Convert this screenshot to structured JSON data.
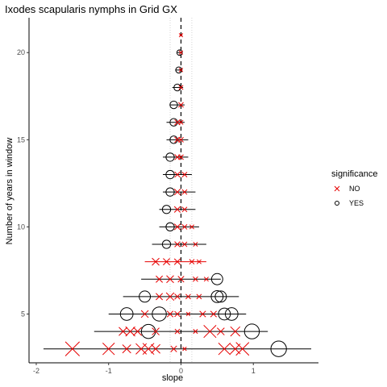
{
  "chart_data": {
    "type": "scatter",
    "title": "Ixodes scapularis nymphs in Grid GX",
    "xlabel": "slope",
    "ylabel": "Number of years in window",
    "xlim": [
      -2.1,
      1.9
    ],
    "ylim": [
      2.2,
      22
    ],
    "x_ticks": [
      -2,
      -1,
      0,
      1
    ],
    "y_ticks": [
      5,
      10,
      15,
      20
    ],
    "reference_line_x": 0,
    "reference_lines_dotted_x": [
      -0.15,
      0.15
    ],
    "grid": false,
    "legend": {
      "title": "significance",
      "position": "right",
      "entries": [
        {
          "label": "NO",
          "marker": "x",
          "color": "#e60000"
        },
        {
          "label": "YES",
          "marker": "circle",
          "color": "#000000"
        }
      ]
    },
    "points": [
      {
        "y": 3,
        "x": -1.5,
        "lo": -1.9,
        "hi": 1.8,
        "sig": "NO",
        "size": 1.0
      },
      {
        "y": 3,
        "x": -1.0,
        "lo": -1.9,
        "hi": 1.8,
        "sig": "NO",
        "size": 0.8
      },
      {
        "y": 3,
        "x": -0.75,
        "lo": -1.9,
        "hi": 1.8,
        "sig": "NO",
        "size": 0.5
      },
      {
        "y": 3,
        "x": -0.55,
        "lo": -1.9,
        "hi": 1.8,
        "sig": "NO",
        "size": 0.7
      },
      {
        "y": 3,
        "x": -0.45,
        "lo": -1.9,
        "hi": 1.8,
        "sig": "NO",
        "size": 0.75
      },
      {
        "y": 3,
        "x": -0.35,
        "lo": -1.9,
        "hi": 1.8,
        "sig": "NO",
        "size": 0.55
      },
      {
        "y": 3,
        "x": -0.1,
        "lo": -1.9,
        "hi": 1.8,
        "sig": "NO",
        "size": 0.3
      },
      {
        "y": 3,
        "x": 0.05,
        "lo": -1.9,
        "hi": 1.8,
        "sig": "NO",
        "size": 0.1
      },
      {
        "y": 3,
        "x": 0.6,
        "lo": -1.9,
        "hi": 1.8,
        "sig": "NO",
        "size": 0.8
      },
      {
        "y": 3,
        "x": 0.75,
        "lo": -1.9,
        "hi": 1.8,
        "sig": "NO",
        "size": 0.65
      },
      {
        "y": 3,
        "x": 0.85,
        "lo": -1.9,
        "hi": 1.8,
        "sig": "NO",
        "size": 0.9
      },
      {
        "y": 3,
        "x": 1.35,
        "lo": -1.9,
        "hi": 1.8,
        "sig": "YES",
        "size": 0.85
      },
      {
        "y": 4,
        "x": -0.8,
        "lo": -1.2,
        "hi": 1.2,
        "sig": "NO",
        "size": 0.5
      },
      {
        "y": 4,
        "x": -0.7,
        "lo": -1.2,
        "hi": 1.2,
        "sig": "NO",
        "size": 0.6
      },
      {
        "y": 4,
        "x": -0.6,
        "lo": -1.2,
        "hi": 1.2,
        "sig": "NO",
        "size": 0.5
      },
      {
        "y": 4,
        "x": -0.45,
        "lo": -1.2,
        "hi": 1.2,
        "sig": "YES",
        "size": 0.75
      },
      {
        "y": 4,
        "x": -0.35,
        "lo": -1.2,
        "hi": 1.2,
        "sig": "NO",
        "size": 0.4
      },
      {
        "y": 4,
        "x": -0.05,
        "lo": -1.2,
        "hi": 1.2,
        "sig": "NO",
        "size": 0.2
      },
      {
        "y": 4,
        "x": 0.2,
        "lo": -1.2,
        "hi": 1.2,
        "sig": "NO",
        "size": 0.15
      },
      {
        "y": 4,
        "x": 0.4,
        "lo": -1.2,
        "hi": 1.2,
        "sig": "NO",
        "size": 0.85
      },
      {
        "y": 4,
        "x": 0.55,
        "lo": -1.2,
        "hi": 1.2,
        "sig": "NO",
        "size": 0.4
      },
      {
        "y": 4,
        "x": 0.75,
        "lo": -1.2,
        "hi": 1.2,
        "sig": "NO",
        "size": 0.6
      },
      {
        "y": 4,
        "x": 0.98,
        "lo": -1.2,
        "hi": 1.2,
        "sig": "YES",
        "size": 0.8
      },
      {
        "y": 5,
        "x": -0.75,
        "lo": -1.0,
        "hi": 0.9,
        "sig": "YES",
        "size": 0.65
      },
      {
        "y": 5,
        "x": -0.5,
        "lo": -1.0,
        "hi": 0.9,
        "sig": "NO",
        "size": 0.4
      },
      {
        "y": 5,
        "x": -0.3,
        "lo": -1.0,
        "hi": 0.9,
        "sig": "YES",
        "size": 0.75
      },
      {
        "y": 5,
        "x": -0.15,
        "lo": -1.0,
        "hi": 0.9,
        "sig": "NO",
        "size": 0.3
      },
      {
        "y": 5,
        "x": -0.05,
        "lo": -1.0,
        "hi": 0.9,
        "sig": "NO",
        "size": 0.25
      },
      {
        "y": 5,
        "x": 0.1,
        "lo": -1.0,
        "hi": 0.9,
        "sig": "NO",
        "size": 0.1
      },
      {
        "y": 5,
        "x": 0.3,
        "lo": -1.0,
        "hi": 0.9,
        "sig": "NO",
        "size": 0.3
      },
      {
        "y": 5,
        "x": 0.45,
        "lo": -1.0,
        "hi": 0.9,
        "sig": "NO",
        "size": 0.3
      },
      {
        "y": 5,
        "x": 0.6,
        "lo": -1.0,
        "hi": 0.9,
        "sig": "YES",
        "size": 0.6
      },
      {
        "y": 5,
        "x": 0.7,
        "lo": -1.0,
        "hi": 0.9,
        "sig": "YES",
        "size": 0.65
      },
      {
        "y": 6,
        "x": -0.5,
        "lo": -0.8,
        "hi": 0.8,
        "sig": "YES",
        "size": 0.55
      },
      {
        "y": 6,
        "x": -0.3,
        "lo": -0.8,
        "hi": 0.8,
        "sig": "NO",
        "size": 0.35
      },
      {
        "y": 6,
        "x": -0.15,
        "lo": -0.8,
        "hi": 0.8,
        "sig": "NO",
        "size": 0.45
      },
      {
        "y": 6,
        "x": -0.05,
        "lo": -0.8,
        "hi": 0.8,
        "sig": "NO",
        "size": 0.25
      },
      {
        "y": 6,
        "x": 0.1,
        "lo": -0.8,
        "hi": 0.8,
        "sig": "NO",
        "size": 0.2
      },
      {
        "y": 6,
        "x": 0.25,
        "lo": -0.8,
        "hi": 0.8,
        "sig": "NO",
        "size": 0.2
      },
      {
        "y": 6,
        "x": 0.5,
        "lo": -0.8,
        "hi": 0.8,
        "sig": "YES",
        "size": 0.6
      },
      {
        "y": 6,
        "x": 0.55,
        "lo": -0.8,
        "hi": 0.8,
        "sig": "YES",
        "size": 0.55
      },
      {
        "y": 7,
        "x": -0.3,
        "lo": -0.55,
        "hi": 0.55,
        "sig": "NO",
        "size": 0.35
      },
      {
        "y": 7,
        "x": -0.15,
        "lo": -0.55,
        "hi": 0.55,
        "sig": "NO",
        "size": 0.4
      },
      {
        "y": 7,
        "x": 0.0,
        "lo": -0.55,
        "hi": 0.55,
        "sig": "NO",
        "size": 0.3
      },
      {
        "y": 7,
        "x": 0.2,
        "lo": -0.55,
        "hi": 0.55,
        "sig": "NO",
        "size": 0.2
      },
      {
        "y": 7,
        "x": 0.35,
        "lo": -0.55,
        "hi": 0.55,
        "sig": "NO",
        "size": 0.15
      },
      {
        "y": 7,
        "x": 0.5,
        "lo": -0.55,
        "hi": 0.55,
        "sig": "YES",
        "size": 0.55
      },
      {
        "y": 8,
        "x": -0.35,
        "lo": -0.5,
        "hi": 0.35,
        "sig": "NO",
        "size": 0.4
      },
      {
        "y": 8,
        "x": -0.2,
        "lo": -0.5,
        "hi": 0.35,
        "sig": "NO",
        "size": 0.35
      },
      {
        "y": 8,
        "x": -0.05,
        "lo": -0.5,
        "hi": 0.35,
        "sig": "NO",
        "size": 0.3
      },
      {
        "y": 8,
        "x": 0.15,
        "lo": -0.5,
        "hi": 0.35,
        "sig": "NO",
        "size": 0.2
      },
      {
        "y": 8,
        "x": 0.25,
        "lo": -0.5,
        "hi": 0.35,
        "sig": "NO",
        "size": 0.15
      },
      {
        "y": 9,
        "x": -0.2,
        "lo": -0.4,
        "hi": 0.35,
        "sig": "YES",
        "size": 0.35
      },
      {
        "y": 9,
        "x": -0.05,
        "lo": -0.4,
        "hi": 0.35,
        "sig": "NO",
        "size": 0.25
      },
      {
        "y": 9,
        "x": 0.05,
        "lo": -0.4,
        "hi": 0.35,
        "sig": "NO",
        "size": 0.2
      },
      {
        "y": 9,
        "x": 0.2,
        "lo": -0.4,
        "hi": 0.35,
        "sig": "NO",
        "size": 0.15
      },
      {
        "y": 10,
        "x": -0.15,
        "lo": -0.3,
        "hi": 0.25,
        "sig": "YES",
        "size": 0.35
      },
      {
        "y": 10,
        "x": -0.05,
        "lo": -0.3,
        "hi": 0.25,
        "sig": "NO",
        "size": 0.3
      },
      {
        "y": 10,
        "x": 0.05,
        "lo": -0.3,
        "hi": 0.25,
        "sig": "NO",
        "size": 0.2
      },
      {
        "y": 10,
        "x": 0.15,
        "lo": -0.3,
        "hi": 0.25,
        "sig": "NO",
        "size": 0.15
      },
      {
        "y": 11,
        "x": -0.2,
        "lo": -0.3,
        "hi": 0.2,
        "sig": "YES",
        "size": 0.35
      },
      {
        "y": 11,
        "x": -0.05,
        "lo": -0.3,
        "hi": 0.2,
        "sig": "NO",
        "size": 0.3
      },
      {
        "y": 11,
        "x": 0.05,
        "lo": -0.3,
        "hi": 0.2,
        "sig": "NO",
        "size": 0.2
      },
      {
        "y": 12,
        "x": -0.15,
        "lo": -0.25,
        "hi": 0.2,
        "sig": "YES",
        "size": 0.35
      },
      {
        "y": 12,
        "x": -0.05,
        "lo": -0.25,
        "hi": 0.2,
        "sig": "NO",
        "size": 0.3
      },
      {
        "y": 12,
        "x": 0.05,
        "lo": -0.25,
        "hi": 0.2,
        "sig": "NO",
        "size": 0.2
      },
      {
        "y": 13,
        "x": -0.15,
        "lo": -0.25,
        "hi": 0.15,
        "sig": "YES",
        "size": 0.35
      },
      {
        "y": 13,
        "x": -0.05,
        "lo": -0.25,
        "hi": 0.15,
        "sig": "NO",
        "size": 0.25
      },
      {
        "y": 13,
        "x": 0.05,
        "lo": -0.25,
        "hi": 0.15,
        "sig": "NO",
        "size": 0.2
      },
      {
        "y": 14,
        "x": -0.15,
        "lo": -0.25,
        "hi": 0.1,
        "sig": "YES",
        "size": 0.35
      },
      {
        "y": 14,
        "x": -0.05,
        "lo": -0.25,
        "hi": 0.1,
        "sig": "NO",
        "size": 0.25
      },
      {
        "y": 14,
        "x": 0.0,
        "lo": -0.25,
        "hi": 0.1,
        "sig": "NO",
        "size": 0.2
      },
      {
        "y": 15,
        "x": -0.1,
        "lo": -0.2,
        "hi": 0.1,
        "sig": "YES",
        "size": 0.3
      },
      {
        "y": 15,
        "x": -0.05,
        "lo": -0.2,
        "hi": 0.1,
        "sig": "NO",
        "size": 0.25
      },
      {
        "y": 15,
        "x": 0.0,
        "lo": -0.2,
        "hi": 0.1,
        "sig": "NO",
        "size": 0.2
      },
      {
        "y": 16,
        "x": -0.1,
        "lo": -0.2,
        "hi": 0.05,
        "sig": "YES",
        "size": 0.3
      },
      {
        "y": 16,
        "x": -0.05,
        "lo": -0.2,
        "hi": 0.05,
        "sig": "NO",
        "size": 0.25
      },
      {
        "y": 16,
        "x": 0.0,
        "lo": -0.2,
        "hi": 0.05,
        "sig": "NO",
        "size": 0.15
      },
      {
        "y": 17,
        "x": -0.1,
        "lo": -0.15,
        "hi": 0.05,
        "sig": "YES",
        "size": 0.3
      },
      {
        "y": 17,
        "x": 0.0,
        "lo": -0.15,
        "hi": 0.05,
        "sig": "NO",
        "size": 0.2
      },
      {
        "y": 18,
        "x": -0.05,
        "lo": -0.12,
        "hi": 0.03,
        "sig": "YES",
        "size": 0.25
      },
      {
        "y": 18,
        "x": 0.0,
        "lo": -0.12,
        "hi": 0.03,
        "sig": "NO",
        "size": 0.15
      },
      {
        "y": 19,
        "x": -0.03,
        "lo": -0.08,
        "hi": 0.02,
        "sig": "YES",
        "size": 0.2
      },
      {
        "y": 19,
        "x": 0.0,
        "lo": -0.08,
        "hi": 0.02,
        "sig": "NO",
        "size": 0.1
      },
      {
        "y": 20,
        "x": -0.02,
        "lo": -0.05,
        "hi": 0.02,
        "sig": "YES",
        "size": 0.15
      },
      {
        "y": 20,
        "x": 0.0,
        "lo": -0.05,
        "hi": 0.02,
        "sig": "NO",
        "size": 0.1
      },
      {
        "y": 21,
        "x": 0.0,
        "lo": -0.02,
        "hi": 0.02,
        "sig": "NO",
        "size": 0.1
      }
    ]
  }
}
